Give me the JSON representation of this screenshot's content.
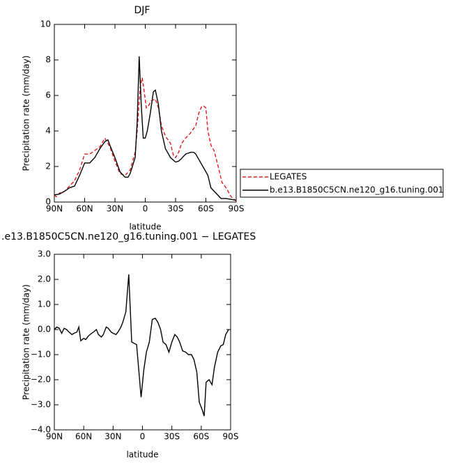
{
  "chart_data": [
    {
      "type": "line",
      "title": "DJF",
      "y_label": "Precipitation rate (mm/day)",
      "x_label": "latitude",
      "xlim": [
        90,
        -90
      ],
      "xticks": [
        {
          "value": 90,
          "label": "90N"
        },
        {
          "value": 60,
          "label": "60N"
        },
        {
          "value": 30,
          "label": "30N"
        },
        {
          "value": 0,
          "label": "0"
        },
        {
          "value": -30,
          "label": "30S"
        },
        {
          "value": -60,
          "label": "60S"
        },
        {
          "value": -90,
          "label": "90S"
        }
      ],
      "ylim": [
        0,
        10
      ],
      "yticks": [
        0,
        2,
        4,
        6,
        8,
        10
      ],
      "legend": "right",
      "series": [
        {
          "name": "LEGATES",
          "color": "#e41a1c",
          "line_style": "dashed",
          "x": [
            90,
            88,
            85,
            80,
            75,
            70,
            65,
            60,
            55,
            50,
            45,
            40,
            35,
            30,
            25,
            20,
            15,
            10,
            8,
            5,
            3,
            1,
            -1,
            -3,
            -6,
            -10,
            -13,
            -16,
            -20,
            -25,
            -28,
            -30,
            -33,
            -36,
            -40,
            -45,
            -50,
            -53,
            -56,
            -58,
            -60,
            -62,
            -65,
            -68,
            -70,
            -73,
            -76,
            -80,
            -85,
            -90
          ],
          "values": [
            0.4,
            0.3,
            0.5,
            0.6,
            0.9,
            1.2,
            1.8,
            2.7,
            2.7,
            2.9,
            3.1,
            3.6,
            3.1,
            2.3,
            1.6,
            1.5,
            1.8,
            2.8,
            4.0,
            6.5,
            7.0,
            6.2,
            5.3,
            5.4,
            5.7,
            5.8,
            5.3,
            4.3,
            3.7,
            3.3,
            2.6,
            2.5,
            2.8,
            3.3,
            3.6,
            3.9,
            4.3,
            5.0,
            5.4,
            5.4,
            5.3,
            4.0,
            3.2,
            2.9,
            2.5,
            1.8,
            1.1,
            0.8,
            0.3,
            0.05
          ]
        },
        {
          "name": "b.e13.B1850C5CN.ne120_g16.tuning.001",
          "color": "#000000",
          "line_style": "solid",
          "x": [
            90,
            85,
            80,
            75,
            70,
            65,
            60,
            55,
            50,
            45,
            40,
            37,
            35,
            30,
            25,
            20,
            17,
            15,
            10,
            8,
            6,
            4,
            2,
            0,
            -2,
            -5,
            -8,
            -10,
            -13,
            -16,
            -20,
            -25,
            -30,
            -33,
            -35,
            -40,
            -45,
            -48,
            -50,
            -55,
            -60,
            -62,
            -65,
            -70,
            -75,
            -80,
            -85,
            -90
          ],
          "values": [
            0.4,
            0.45,
            0.6,
            0.8,
            0.9,
            1.5,
            2.2,
            2.2,
            2.5,
            3.0,
            3.4,
            3.5,
            3.2,
            2.5,
            1.7,
            1.4,
            1.4,
            1.6,
            2.5,
            4.5,
            8.2,
            5.5,
            3.6,
            3.6,
            4.0,
            5.0,
            6.2,
            6.3,
            5.5,
            4.0,
            3.0,
            2.5,
            2.25,
            2.3,
            2.4,
            2.7,
            2.8,
            2.8,
            2.7,
            2.2,
            1.7,
            1.5,
            0.8,
            0.5,
            0.2,
            0.2,
            0.15,
            0.1
          ]
        }
      ]
    },
    {
      "type": "line",
      "title": ".e13.B1850C5CN.ne120_g16.tuning.001 − LEGATES",
      "y_label": "Precipitation rate (mm/day)",
      "x_label": "latitude",
      "xlim": [
        90,
        -90
      ],
      "xticks": [
        {
          "value": 90,
          "label": "90N"
        },
        {
          "value": 60,
          "label": "60N"
        },
        {
          "value": 30,
          "label": "30N"
        },
        {
          "value": 0,
          "label": "0"
        },
        {
          "value": -30,
          "label": "30S"
        },
        {
          "value": -60,
          "label": "60S"
        },
        {
          "value": -90,
          "label": "90S"
        }
      ],
      "ylim": [
        -4,
        3
      ],
      "yticks": [
        {
          "value": -4,
          "label": "−4.0"
        },
        {
          "value": -3,
          "label": "−3.0"
        },
        {
          "value": -2,
          "label": "−2.0"
        },
        {
          "value": -1,
          "label": "−1.0"
        },
        {
          "value": 0,
          "label": "0.0"
        },
        {
          "value": 1,
          "label": "1.0"
        },
        {
          "value": 2,
          "label": "2.0"
        },
        {
          "value": 3,
          "label": "3.0"
        }
      ],
      "series": [
        {
          "color": "#000000",
          "line_style": "solid",
          "x": [
            90,
            87.5,
            85,
            82.5,
            80,
            77.5,
            75,
            72,
            70,
            67,
            65,
            63,
            60,
            58,
            55,
            52,
            50,
            47,
            45,
            42,
            40,
            37,
            35,
            32,
            30,
            27,
            25,
            22,
            20,
            17,
            14,
            11,
            6,
            1.4,
            -1.4,
            -4,
            -7,
            -10,
            -13,
            -15.6,
            -18.5,
            -21,
            -24,
            -27,
            -30,
            -33,
            -35.5,
            -38,
            -41,
            -44,
            -47,
            -50,
            -52.6,
            -55.5,
            -58,
            -61,
            -63,
            -65,
            -68,
            -71,
            -73.5,
            -76.8,
            -80,
            -82.5,
            -85,
            -88
          ],
          "values": [
            0.0,
            0.1,
            0.05,
            -0.15,
            0.05,
            0.0,
            -0.1,
            -0.2,
            -0.15,
            -0.1,
            0.1,
            -0.45,
            -0.35,
            -0.4,
            -0.25,
            -0.15,
            -0.1,
            0.0,
            -0.2,
            -0.3,
            -0.2,
            0.1,
            0.05,
            -0.1,
            -0.15,
            -0.2,
            -0.1,
            0.1,
            0.3,
            0.7,
            2.2,
            -0.5,
            -0.6,
            -2.7,
            -1.6,
            -0.9,
            -0.5,
            0.4,
            0.45,
            0.3,
            0.0,
            -0.5,
            -0.6,
            -0.9,
            -0.5,
            -0.2,
            -0.3,
            -0.5,
            -0.85,
            -0.9,
            -1.0,
            -1.0,
            -1.2,
            -1.7,
            -2.9,
            -3.2,
            -3.45,
            -2.1,
            -2.0,
            -2.2,
            -1.5,
            -0.9,
            -0.65,
            -0.6,
            -0.2,
            0.0
          ]
        }
      ]
    }
  ]
}
